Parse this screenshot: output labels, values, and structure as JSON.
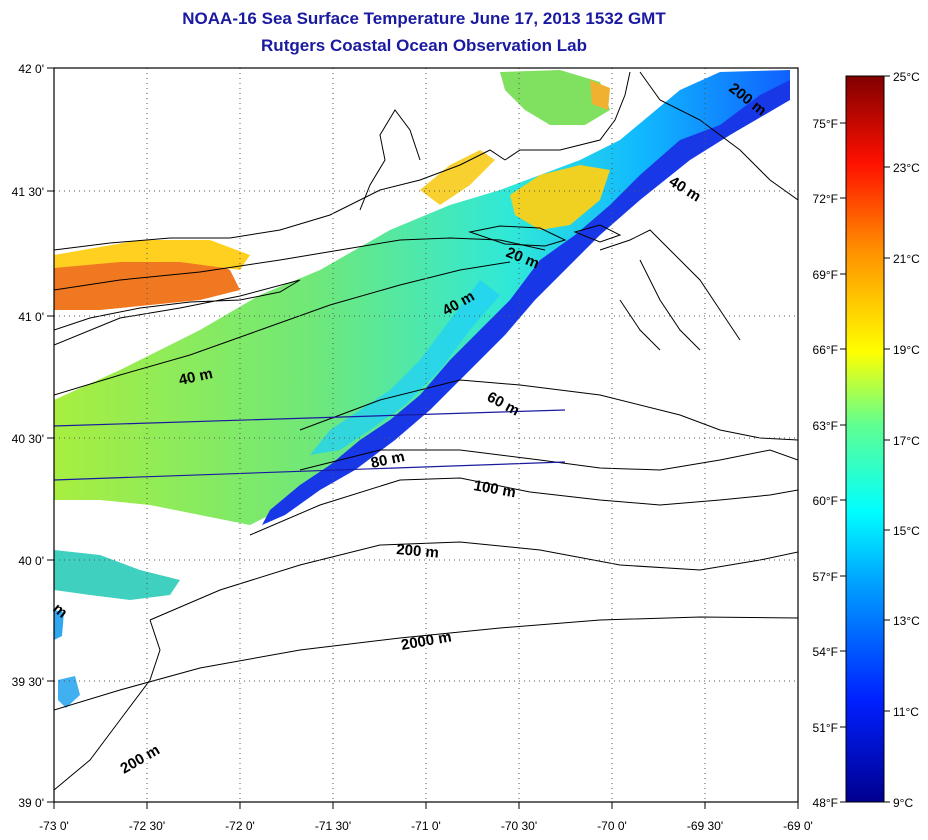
{
  "title": "NOAA-16 Sea Surface Temperature June 17, 2013 1532 GMT",
  "subtitle": "Rutgers Coastal Ocean Observation Lab",
  "lat_ticks": [
    "42 0'",
    "41 30'",
    "41 0'",
    "40 30'",
    "40 0'",
    "39 30'",
    "39 0'"
  ],
  "lon_ticks": [
    "-73 0'",
    "-72 30'",
    "-72 0'",
    "-71 30'",
    "-71 0'",
    "-70 30'",
    "-70 0'",
    "-69 30'",
    "-69 0'"
  ],
  "colorbar": {
    "celsius": [
      "25°C",
      "23°C",
      "21°C",
      "19°C",
      "17°C",
      "15°C",
      "13°C",
      "11°C",
      "9°C"
    ],
    "fahrenheit": [
      "75°F",
      "72°F",
      "69°F",
      "66°F",
      "63°F",
      "60°F",
      "57°F",
      "54°F",
      "51°F",
      "48°F"
    ]
  },
  "contour_labels": [
    "200 m",
    "40 m",
    "20 m",
    "40 m",
    "40 m",
    "60 m",
    "80 m",
    "100 m",
    "200 m",
    "2000 m",
    "200 m",
    "m"
  ]
}
